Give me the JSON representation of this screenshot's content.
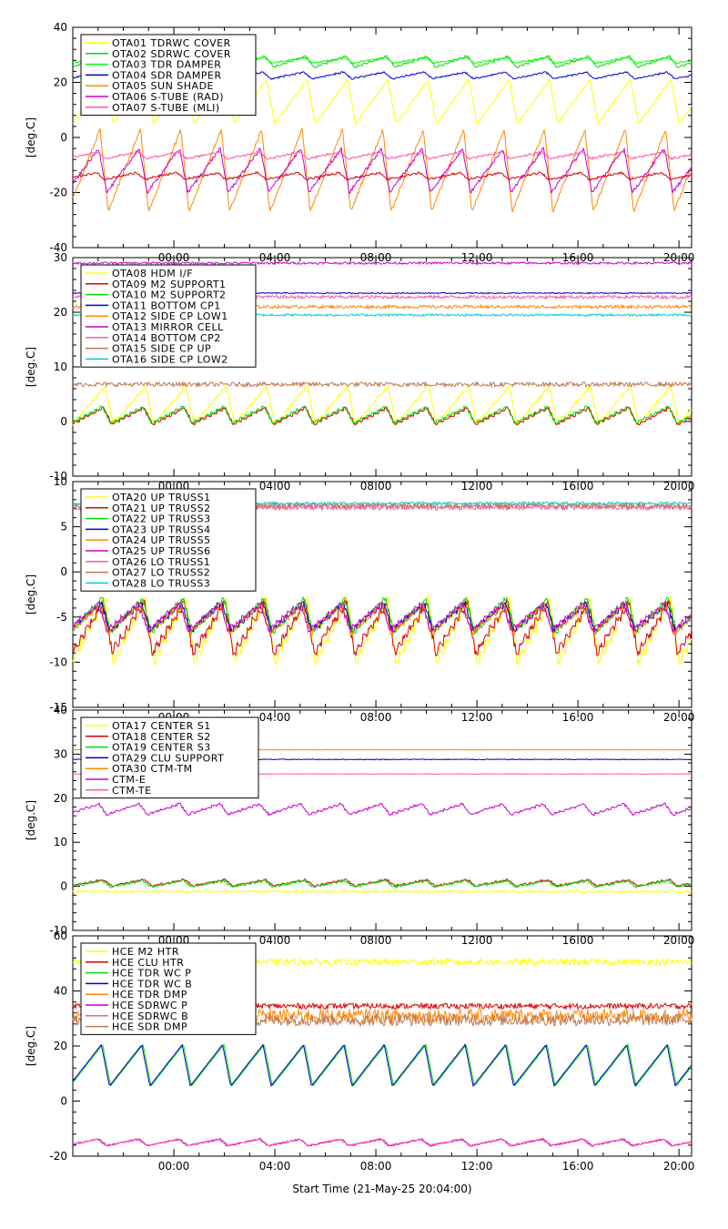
{
  "chart_data": [
    {
      "type": "line",
      "ylabel": "[deg.C]",
      "ylim": [
        -40,
        40
      ],
      "yticks": [
        -40,
        -20,
        0,
        20,
        40
      ],
      "xtick_labels": [
        "00:00",
        "04:00",
        "08:00",
        "12:00",
        "16:00",
        "20:00"
      ],
      "legend_position": "top-left",
      "series": [
        {
          "name": "OTA01 TDRWC COVER",
          "color": "#ffff00",
          "base": 13,
          "amp": 8,
          "shape": "saw",
          "noise": 0.4
        },
        {
          "name": "OTA02 SDRWC COVER",
          "color": "#00dd00",
          "base": 27.5,
          "amp": 2,
          "shape": "step",
          "noise": 0.2
        },
        {
          "name": "OTA03 TDR DAMPER",
          "color": "#00ff00",
          "base": 28,
          "amp": 1,
          "shape": "step",
          "noise": 0.2
        },
        {
          "name": "OTA04 SDR DAMPER",
          "color": "#0000cc",
          "base": 22.5,
          "amp": 1.2,
          "shape": "step",
          "noise": 0.2
        },
        {
          "name": "OTA05 SUN SHADE",
          "color": "#ff8800",
          "base": -12,
          "amp": 15,
          "shape": "saw",
          "noise": 0.6
        },
        {
          "name": "OTA06 S-TUBE (RAD)",
          "color": "#cc00cc",
          "base": -12,
          "amp": 8,
          "shape": "saw",
          "noise": 0.6
        },
        {
          "name": "OTA07 S-TUBE (MLI)",
          "color": "#ff55aa",
          "base": -6.5,
          "amp": 1.2,
          "shape": "step",
          "noise": 0.3
        },
        {
          "name": "",
          "color": "#dd0000",
          "base": -14,
          "amp": 1.2,
          "shape": "step",
          "noise": 0.3
        }
      ]
    },
    {
      "type": "line",
      "ylabel": "[deg.C]",
      "ylim": [
        -10,
        30
      ],
      "yticks": [
        -10,
        0,
        10,
        20,
        30
      ],
      "xtick_labels": [
        "00:00",
        "04:00",
        "08:00",
        "12:00",
        "16:00",
        "20:00"
      ],
      "legend_position": "top-left",
      "series": [
        {
          "name": "OTA08 HDM I/F",
          "color": "#ffff00",
          "base": 3,
          "amp": 3.5,
          "shape": "saw",
          "noise": 0.3
        },
        {
          "name": "OTA09 M2 SUPPORT1",
          "color": "#dd0000",
          "base": 1,
          "amp": 1.5,
          "shape": "step",
          "noise": 0.15
        },
        {
          "name": "OTA10 M2 SUPPORT2",
          "color": "#00dd00",
          "base": 1.2,
          "amp": 1.5,
          "shape": "step",
          "noise": 0.15
        },
        {
          "name": "OTA11 BOTTOM CP1",
          "color": "#0000cc",
          "base": 23.5,
          "amp": 0.3,
          "shape": "flat",
          "noise": 0.1
        },
        {
          "name": "OTA12 SIDE CP LOW1",
          "color": "#ff8800",
          "base": 21,
          "amp": 0.2,
          "shape": "flat",
          "noise": 0.3
        },
        {
          "name": "OTA13 MIRROR CELL",
          "color": "#cc00cc",
          "base": 29,
          "amp": 0.3,
          "shape": "flat",
          "noise": 0.2
        },
        {
          "name": "OTA14 BOTTOM CP2",
          "color": "#ff55aa",
          "base": 22.8,
          "amp": 0.4,
          "shape": "flat",
          "noise": 0.3
        },
        {
          "name": "OTA15 SIDE CP UP",
          "color": "#c07850",
          "base": 6.8,
          "amp": 0.5,
          "shape": "flat",
          "noise": 0.4
        },
        {
          "name": "OTA16 SIDE CP LOW2",
          "color": "#00cccc",
          "base": 19.5,
          "amp": 0.2,
          "shape": "flat",
          "noise": 0.2
        }
      ]
    },
    {
      "type": "line",
      "ylabel": "[deg.C]",
      "ylim": [
        -15,
        10
      ],
      "yticks": [
        -15,
        -10,
        -5,
        0,
        5,
        10
      ],
      "xtick_labels": [
        "00:00",
        "04:00",
        "08:00",
        "12:00",
        "16:00",
        "20:00"
      ],
      "legend_position": "top-left",
      "series": [
        {
          "name": "OTA20 UP TRUSS1",
          "color": "#ffff00",
          "base": -6.5,
          "amp": 3.5,
          "shape": "step",
          "noise": 0.3
        },
        {
          "name": "OTA21 UP TRUSS2",
          "color": "#dd0000",
          "base": -6.2,
          "amp": 2.8,
          "shape": "step",
          "noise": 0.3
        },
        {
          "name": "OTA22 UP TRUSS3",
          "color": "#00dd00",
          "base": -4.8,
          "amp": 1.8,
          "shape": "step",
          "noise": 0.2
        },
        {
          "name": "OTA23 UP TRUSS4",
          "color": "#0000cc",
          "base": -5,
          "amp": 1.5,
          "shape": "step",
          "noise": 0.2
        },
        {
          "name": "OTA24 UP TRUSS5",
          "color": "#ff8800",
          "base": -5.2,
          "amp": 1.6,
          "shape": "step",
          "noise": 0.2
        },
        {
          "name": "OTA25 UP TRUSS6",
          "color": "#cc00cc",
          "base": -5,
          "amp": 1.5,
          "shape": "step",
          "noise": 0.2
        },
        {
          "name": "OTA26 LO TRUSS1",
          "color": "#ff55aa",
          "base": 7.2,
          "amp": 0.4,
          "shape": "flat",
          "noise": 0.35
        },
        {
          "name": "OTA27 LO TRUSS2",
          "color": "#c07850",
          "base": 7.3,
          "amp": 0.4,
          "shape": "flat",
          "noise": 0.3
        },
        {
          "name": "OTA28 LO TRUSS3",
          "color": "#00cccc",
          "base": 7.6,
          "amp": 0.2,
          "shape": "flat",
          "noise": 0.15
        }
      ]
    },
    {
      "type": "line",
      "ylabel": "[deg.C]",
      "ylim": [
        -10,
        40
      ],
      "yticks": [
        -10,
        0,
        10,
        20,
        30,
        40
      ],
      "xtick_labels": [
        "00:00",
        "04:00",
        "08:00",
        "12:00",
        "16:00",
        "20:00"
      ],
      "legend_position": "top-left",
      "series": [
        {
          "name": "OTA17 CENTER S1",
          "color": "#ffff00",
          "base": -1.2,
          "amp": 0.4,
          "shape": "flat",
          "noise": 0.25
        },
        {
          "name": "OTA18 CENTER S2",
          "color": "#dd0000",
          "base": 0.8,
          "amp": 0.7,
          "shape": "step",
          "noise": 0.2
        },
        {
          "name": "OTA19 CENTER S3",
          "color": "#00dd00",
          "base": 0.6,
          "amp": 0.7,
          "shape": "step",
          "noise": 0.25
        },
        {
          "name": "OTA29 CLU SUPPORT",
          "color": "#0000cc",
          "base": 28.8,
          "amp": 0.2,
          "shape": "flat",
          "noise": 0.1
        },
        {
          "name": "OTA30 CTM-TM",
          "color": "#ff8800",
          "base": 31,
          "amp": 0.05,
          "shape": "flat",
          "noise": 0.05
        },
        {
          "name": "CTM-E",
          "color": "#cc00cc",
          "base": 17.5,
          "amp": 1.2,
          "shape": "step",
          "noise": 0.2
        },
        {
          "name": "CTM-TE",
          "color": "#ff55aa",
          "base": 25.5,
          "amp": 0.05,
          "shape": "flat",
          "noise": 0.03
        }
      ]
    },
    {
      "type": "line",
      "ylabel": "[deg.C]",
      "ylim": [
        -20,
        60
      ],
      "yticks": [
        -20,
        0,
        20,
        40,
        60
      ],
      "xtick_labels": [
        "00:00",
        "04:00",
        "08:00",
        "12:00",
        "16:00",
        "20:00"
      ],
      "xlabel": "Start Time (21-May-25 20:04:00)",
      "legend_position": "top-left",
      "series": [
        {
          "name": "HCE M2 HTR",
          "color": "#ffff00",
          "base": 50.5,
          "amp": 0.1,
          "shape": "flat",
          "noise": 1.2
        },
        {
          "name": "HCE CLU HTR",
          "color": "#dd0000",
          "base": 34.5,
          "amp": 0.1,
          "shape": "flat",
          "noise": 1.0
        },
        {
          "name": "HCE TDR WC P",
          "color": "#00dd00",
          "base": 13,
          "amp": 7.5,
          "shape": "saw",
          "noise": 0.1
        },
        {
          "name": "HCE TDR WC B",
          "color": "#0000cc",
          "base": 13,
          "amp": 7.5,
          "shape": "saw",
          "noise": 0.1
        },
        {
          "name": "HCE TDR DMP",
          "color": "#ff8800",
          "base": 31,
          "amp": 0.5,
          "shape": "flat",
          "noise": 2.5
        },
        {
          "name": "HCE SDRWC P",
          "color": "#cc00cc",
          "base": -15,
          "amp": 1.2,
          "shape": "saw",
          "noise": 0.3
        },
        {
          "name": "HCE SDRWC B",
          "color": "#ff55aa",
          "base": -15,
          "amp": 1.2,
          "shape": "saw",
          "noise": 0.3
        },
        {
          "name": "HCE SDR DMP",
          "color": "#c07850",
          "base": 29.5,
          "amp": 0.5,
          "shape": "flat",
          "noise": 2.2
        }
      ]
    }
  ]
}
